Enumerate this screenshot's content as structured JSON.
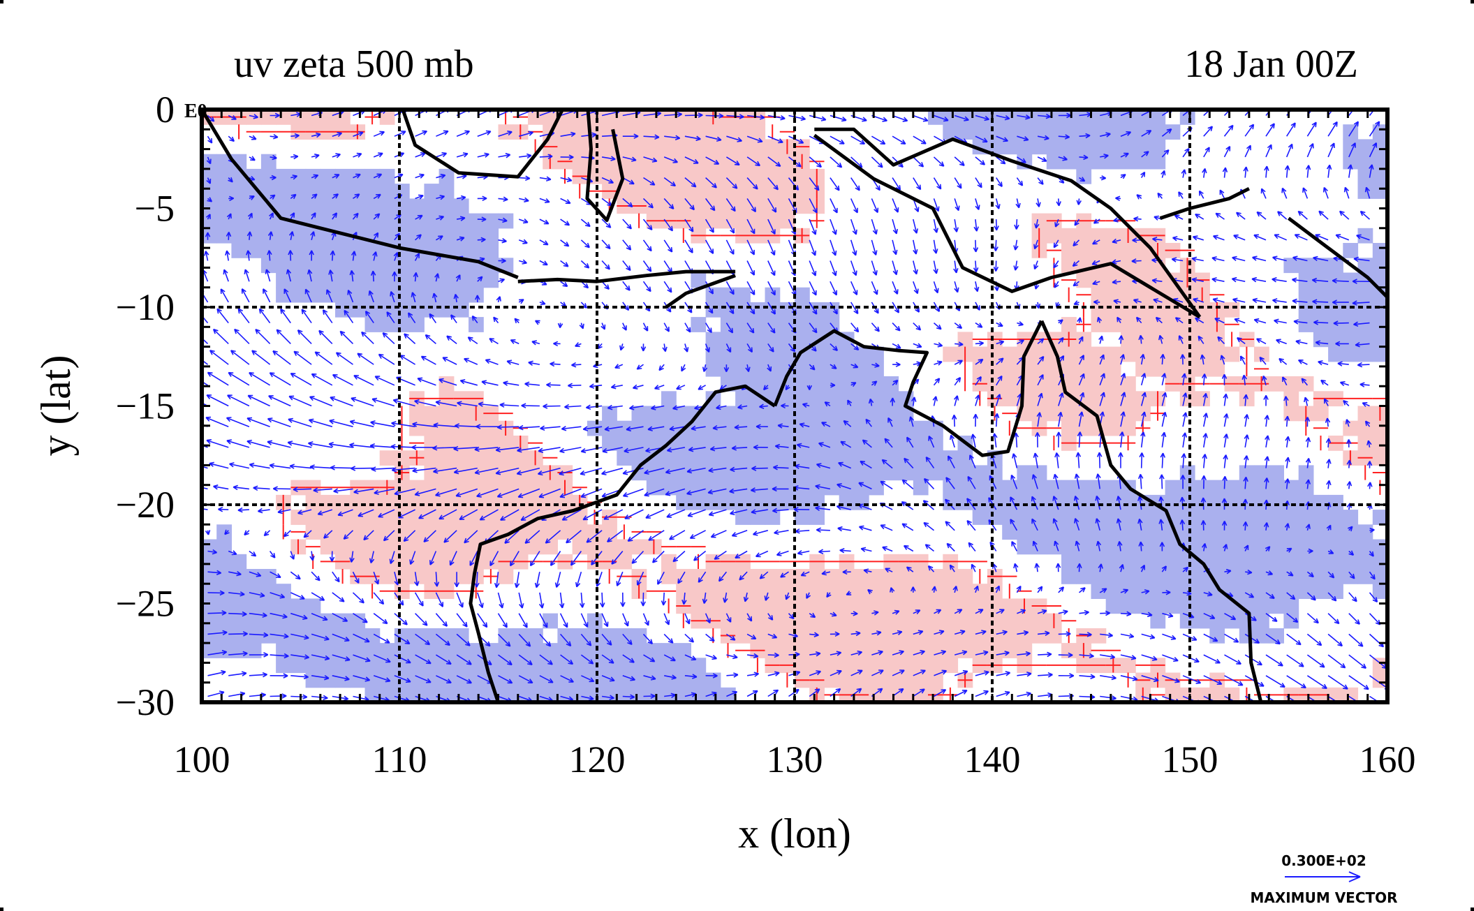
{
  "chart_data": {
    "type": "map",
    "title_left": "uv zeta 500 mb",
    "title_right": "18 Jan 00Z",
    "corner_label": "E0",
    "xlabel": "x (lon)",
    "ylabel": "y (lat)",
    "xlim": [
      100,
      160
    ],
    "ylim": [
      -30,
      0
    ],
    "x_ticks": [
      "100",
      "110",
      "120",
      "130",
      "140",
      "150",
      "160"
    ],
    "y_ticks": [
      "0",
      "−5",
      "−10",
      "−15",
      "−20",
      "−25",
      "−30"
    ],
    "x_tick_values": [
      100,
      110,
      120,
      130,
      140,
      150,
      160
    ],
    "y_tick_values": [
      0,
      -5,
      -10,
      -15,
      -20,
      -25,
      -30
    ],
    "grid": true,
    "grid_lon": [
      110,
      120,
      130,
      140,
      150
    ],
    "grid_lat": [
      -10,
      -20
    ],
    "legend": {
      "value": "0.300E+02",
      "label": "MAXIMUM VECTOR",
      "position": "bottom-right"
    },
    "colors": {
      "negative_fill": "#aab0ee",
      "positive_fill": "#f8c8c8",
      "positive_contour": "#ff2020",
      "vector": "#1a1aff",
      "coastline": "#000000"
    },
    "coastlines": [
      {
        "name": "sumatra-java",
        "points": [
          [
            100,
            0
          ],
          [
            101.5,
            -2.5
          ],
          [
            104,
            -5.5
          ],
          [
            106,
            -6
          ],
          [
            110,
            -7
          ],
          [
            114,
            -7.7
          ],
          [
            116,
            -8.5
          ]
        ]
      },
      {
        "name": "borneo",
        "points": [
          [
            110,
            0.5
          ],
          [
            110.8,
            -1.8
          ],
          [
            113,
            -3.2
          ],
          [
            116,
            -3.4
          ],
          [
            117.5,
            -1.5
          ],
          [
            118.5,
            0.5
          ]
        ]
      },
      {
        "name": "sulawesi",
        "points": [
          [
            119.5,
            0.5
          ],
          [
            119.7,
            -2
          ],
          [
            119.5,
            -4.5
          ],
          [
            120.5,
            -5.6
          ],
          [
            121.3,
            -3.5
          ],
          [
            120.8,
            -1
          ]
        ]
      },
      {
        "name": "lesser-sunda",
        "points": [
          [
            116,
            -8.7
          ],
          [
            118,
            -8.6
          ],
          [
            120,
            -8.7
          ],
          [
            122.5,
            -8.4
          ],
          [
            124.5,
            -8.2
          ],
          [
            127,
            -8.2
          ]
        ]
      },
      {
        "name": "timor",
        "points": [
          [
            123.5,
            -10
          ],
          [
            124.5,
            -9.3
          ],
          [
            127,
            -8.4
          ]
        ]
      },
      {
        "name": "new-guinea-north",
        "points": [
          [
            131,
            -1
          ],
          [
            133,
            -1
          ],
          [
            135,
            -2.8
          ],
          [
            138,
            -1.5
          ],
          [
            141,
            -2.6
          ],
          [
            144,
            -3.6
          ],
          [
            146,
            -5
          ],
          [
            148,
            -7
          ],
          [
            150.5,
            -10.5
          ]
        ]
      },
      {
        "name": "new-guinea-south",
        "points": [
          [
            131,
            -1.3
          ],
          [
            134,
            -3.5
          ],
          [
            137,
            -5
          ],
          [
            138.5,
            -8
          ],
          [
            141,
            -9.2
          ],
          [
            143,
            -8.5
          ],
          [
            146,
            -7.8
          ],
          [
            148,
            -9
          ],
          [
            150.5,
            -10.5
          ]
        ]
      },
      {
        "name": "new-britain",
        "points": [
          [
            148.5,
            -5.5
          ],
          [
            150,
            -5
          ],
          [
            152,
            -4.5
          ],
          [
            153,
            -4
          ]
        ]
      },
      {
        "name": "solomons",
        "points": [
          [
            155,
            -5.5
          ],
          [
            157,
            -7
          ],
          [
            159,
            -8.5
          ],
          [
            160,
            -9.5
          ]
        ]
      },
      {
        "name": "australia-top-end",
        "points": [
          [
            129,
            -15
          ],
          [
            129.6,
            -13.5
          ],
          [
            130.3,
            -12.3
          ],
          [
            132,
            -11.2
          ],
          [
            133.5,
            -12
          ],
          [
            135.3,
            -12.2
          ],
          [
            136.7,
            -12.3
          ],
          [
            136,
            -13.8
          ],
          [
            135.6,
            -15
          ],
          [
            137.5,
            -16
          ],
          [
            139.5,
            -17.5
          ],
          [
            140.8,
            -17.3
          ],
          [
            141.5,
            -15
          ],
          [
            141.6,
            -12.5
          ],
          [
            142.5,
            -10.7
          ]
        ]
      },
      {
        "name": "australia-east",
        "points": [
          [
            142.5,
            -10.7
          ],
          [
            143.3,
            -12.5
          ],
          [
            143.7,
            -14.3
          ],
          [
            145.3,
            -15.5
          ],
          [
            146,
            -18
          ],
          [
            147,
            -19.2
          ],
          [
            148.8,
            -20.3
          ],
          [
            149.5,
            -22
          ],
          [
            150.7,
            -23
          ],
          [
            151.5,
            -24.3
          ],
          [
            153,
            -25.5
          ],
          [
            153.1,
            -28
          ],
          [
            153.6,
            -30
          ]
        ]
      },
      {
        "name": "australia-west",
        "points": [
          [
            129,
            -15
          ],
          [
            127.5,
            -14
          ],
          [
            126,
            -14.3
          ],
          [
            124.8,
            -15.8
          ],
          [
            123.5,
            -17
          ],
          [
            122.2,
            -18
          ],
          [
            121,
            -19.5
          ],
          [
            118.8,
            -20.3
          ],
          [
            117,
            -20.7
          ],
          [
            115.5,
            -21.5
          ],
          [
            114.1,
            -22
          ],
          [
            113.8,
            -23.5
          ],
          [
            113.6,
            -25
          ],
          [
            114,
            -26.5
          ],
          [
            114.5,
            -28.5
          ],
          [
            115,
            -30
          ]
        ]
      }
    ]
  }
}
